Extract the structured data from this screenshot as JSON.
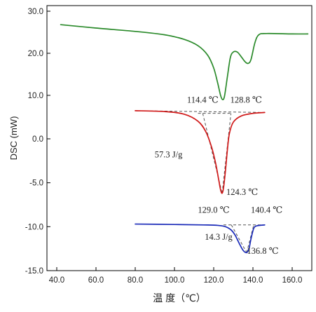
{
  "chart_data": {
    "type": "line",
    "xlabel": "温 度（℃）",
    "ylabel": "DSC (mW)",
    "xlim": [
      35,
      170
    ],
    "ylim": [
      -15,
      30
    ],
    "x_ticks": [
      "40.0",
      "60.0",
      "80.0",
      "100.0",
      "120.0",
      "140.0",
      "160.0"
    ],
    "y_ticks": [
      "30.0",
      "20.0",
      "10.0",
      "0.0",
      "-5.0",
      "-10.0",
      "-15.0"
    ],
    "grid": false,
    "legend": "none",
    "series": [
      {
        "color": "#2a8a2a",
        "x": [
          42,
          60,
          80,
          95,
          105,
          112,
          117,
          120,
          122,
          123.5,
          124.5,
          125.5,
          127,
          128.5,
          130,
          132,
          134,
          136,
          137.5,
          139,
          141,
          143,
          147,
          160,
          168
        ],
        "y": [
          26.8,
          26.0,
          25.2,
          24.4,
          23.3,
          21.8,
          19.5,
          16.5,
          13.0,
          10.0,
          9.0,
          9.8,
          14.5,
          19.0,
          20.3,
          20.3,
          19.2,
          18.0,
          17.6,
          18.5,
          22.5,
          24.4,
          24.7,
          24.6,
          24.6
        ]
      },
      {
        "color": "#d01818",
        "x": [
          80,
          95,
          105,
          112,
          116,
          119,
          121,
          122.5,
          123.5,
          124.3,
          125,
          126,
          127,
          128,
          130,
          134,
          140,
          146
        ],
        "y": [
          3.2,
          3.1,
          2.8,
          2.0,
          0.8,
          -1.0,
          -2.8,
          -4.6,
          -5.8,
          -6.2,
          -5.6,
          -3.6,
          -1.2,
          0.6,
          1.9,
          2.6,
          2.9,
          3.0
        ]
      },
      {
        "color": "#1a2ab8",
        "x": [
          80,
          100,
          115,
          122,
          126,
          129,
          131,
          133,
          135,
          136.8,
          138,
          139,
          140.4,
          142,
          146
        ],
        "y": [
          -9.7,
          -9.75,
          -9.8,
          -9.85,
          -10.0,
          -10.4,
          -11.0,
          -11.9,
          -12.7,
          -12.95,
          -12.5,
          -11.4,
          -10.2,
          -9.9,
          -9.8
        ]
      }
    ],
    "baselines": [
      {
        "x": [
          80,
          146
        ],
        "y": [
          3.2,
          3.0
        ]
      },
      {
        "x": [
          112,
          129
        ],
        "y": [
          2.9,
          2.9
        ]
      },
      {
        "x": [
          114.4,
          124.3
        ],
        "y": [
          2.9,
          -6.2
        ]
      },
      {
        "x": [
          124.3,
          128.8
        ],
        "y": [
          -6.2,
          2.9
        ]
      },
      {
        "x": [
          125,
          146
        ],
        "y": [
          -9.8,
          -9.8
        ]
      },
      {
        "x": [
          129.0,
          136.8
        ],
        "y": [
          -9.8,
          -12.95
        ]
      },
      {
        "x": [
          136.8,
          140.4
        ],
        "y": [
          -12.95,
          -9.8
        ]
      }
    ],
    "annotations": [
      {
        "text": "114.4 ℃",
        "x": 114.4,
        "y": 4.1,
        "anchor": "middle"
      },
      {
        "text": "128.8 ℃",
        "x": 136.5,
        "y": 4.1,
        "anchor": "middle"
      },
      {
        "text": "57.3 J/g",
        "x": 97,
        "y": -2.1,
        "anchor": "middle"
      },
      {
        "text": "124.3 ℃",
        "x": 134.5,
        "y": -6.4,
        "anchor": "middle"
      },
      {
        "text": "129.0 ℃",
        "x": 120,
        "y": -8.4,
        "anchor": "middle"
      },
      {
        "text": "140.4 ℃",
        "x": 147,
        "y": -8.4,
        "anchor": "middle"
      },
      {
        "text": "14.3 J/g",
        "x": 122.5,
        "y": -11.5,
        "anchor": "middle"
      },
      {
        "text": "136.8 ℃",
        "x": 145,
        "y": -13.1,
        "anchor": "middle"
      }
    ]
  }
}
